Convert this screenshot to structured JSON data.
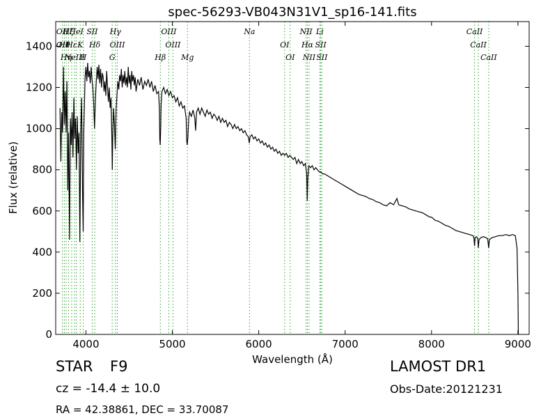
{
  "chart_data": {
    "type": "line",
    "title": "spec-56293-VB043N31V1_sp16-141.fits",
    "xlabel": "Wavelength (Å)",
    "ylabel": "Flux (relative)",
    "xlim": [
      3650,
      9130
    ],
    "ylim": [
      0,
      1520
    ],
    "xticks": [
      {
        "value": 4000,
        "label": "4000"
      },
      {
        "value": 5000,
        "label": "5000"
      },
      {
        "value": 6000,
        "label": "6000"
      },
      {
        "value": 7000,
        "label": "7000"
      },
      {
        "value": 8000,
        "label": "8000"
      },
      {
        "value": 9000,
        "label": "9000"
      }
    ],
    "yticks": [
      {
        "value": 0,
        "label": "0"
      },
      {
        "value": 200,
        "label": "200"
      },
      {
        "value": 400,
        "label": "400"
      },
      {
        "value": 600,
        "label": "600"
      },
      {
        "value": 800,
        "label": "800"
      },
      {
        "value": 1000,
        "label": "1000"
      },
      {
        "value": 1200,
        "label": "1200"
      },
      {
        "value": 1400,
        "label": "1400"
      }
    ],
    "line_color": "#000000",
    "marker_color": "#2ca02c",
    "grid": false,
    "lines": [
      {
        "wl": 3727,
        "labels": [
          "OII",
          "OII"
        ]
      },
      {
        "wl": 3750,
        "labels": [
          "Hθ"
        ]
      },
      {
        "wl": 3771,
        "labels": [
          "Hη"
        ]
      },
      {
        "wl": 3798,
        "labels": [
          "Hζ"
        ]
      },
      {
        "wl": 3835,
        "labels": [
          "Hε"
        ]
      },
      {
        "wl": 3869,
        "labels": [
          "NeIII"
        ]
      },
      {
        "wl": 3889,
        "labels": [
          "HeI"
        ]
      },
      {
        "wl": 3934,
        "labels": [
          "K"
        ]
      },
      {
        "wl": 3969,
        "labels": [
          "H"
        ]
      },
      {
        "wl": 4072,
        "labels": [
          "SII"
        ]
      },
      {
        "wl": 4102,
        "labels": [
          "Hδ"
        ]
      },
      {
        "wl": 4304,
        "labels": [
          "G"
        ]
      },
      {
        "wl": 4341,
        "labels": [
          "Hγ"
        ]
      },
      {
        "wl": 4363,
        "labels": [
          "OIII"
        ]
      },
      {
        "wl": 4861,
        "labels": [
          "Hβ"
        ]
      },
      {
        "wl": 4959,
        "labels": [
          "OIII"
        ]
      },
      {
        "wl": 5007,
        "labels": [
          "OIII"
        ]
      },
      {
        "wl": 5175,
        "labels": [
          "Mg"
        ]
      },
      {
        "wl": 5893,
        "labels": [
          "Na"
        ]
      },
      {
        "wl": 6300,
        "labels": [
          "OI"
        ]
      },
      {
        "wl": 6364,
        "labels": [
          "OI"
        ]
      },
      {
        "wl": 6548,
        "labels": [
          "NII"
        ]
      },
      {
        "wl": 6563,
        "labels": [
          "Hα"
        ]
      },
      {
        "wl": 6583,
        "labels": [
          "NII"
        ]
      },
      {
        "wl": 6707,
        "labels": [
          "Li"
        ]
      },
      {
        "wl": 6717,
        "labels": [
          "SII"
        ]
      },
      {
        "wl": 6731,
        "labels": [
          "SII"
        ]
      },
      {
        "wl": 8498,
        "labels": [
          "CaII"
        ]
      },
      {
        "wl": 8542,
        "labels": [
          "CaII"
        ]
      },
      {
        "wl": 8662,
        "labels": [
          "CaII"
        ]
      }
    ],
    "flux": [
      [
        3700,
        1100
      ],
      [
        3710,
        840
      ],
      [
        3720,
        1080
      ],
      [
        3730,
        980
      ],
      [
        3740,
        1300
      ],
      [
        3750,
        1020
      ],
      [
        3760,
        1180
      ],
      [
        3770,
        980
      ],
      [
        3780,
        1230
      ],
      [
        3790,
        700
      ],
      [
        3800,
        980
      ],
      [
        3810,
        460
      ],
      [
        3820,
        1050
      ],
      [
        3830,
        920
      ],
      [
        3840,
        1080
      ],
      [
        3850,
        860
      ],
      [
        3860,
        1150
      ],
      [
        3870,
        950
      ],
      [
        3880,
        1050
      ],
      [
        3890,
        800
      ],
      [
        3900,
        1060
      ],
      [
        3910,
        880
      ],
      [
        3920,
        980
      ],
      [
        3930,
        450
      ],
      [
        3940,
        1000
      ],
      [
        3950,
        1150
      ],
      [
        3960,
        700
      ],
      [
        3968,
        500
      ],
      [
        3975,
        980
      ],
      [
        3990,
        1250
      ],
      [
        4000,
        1300
      ],
      [
        4010,
        1230
      ],
      [
        4020,
        1320
      ],
      [
        4030,
        1250
      ],
      [
        4040,
        1280
      ],
      [
        4050,
        1220
      ],
      [
        4060,
        1300
      ],
      [
        4070,
        1240
      ],
      [
        4080,
        1200
      ],
      [
        4090,
        1120
      ],
      [
        4100,
        1000
      ],
      [
        4110,
        1150
      ],
      [
        4120,
        1230
      ],
      [
        4130,
        1300
      ],
      [
        4140,
        1240
      ],
      [
        4150,
        1310
      ],
      [
        4160,
        1220
      ],
      [
        4170,
        1290
      ],
      [
        4180,
        1200
      ],
      [
        4190,
        1270
      ],
      [
        4200,
        1250
      ],
      [
        4210,
        1180
      ],
      [
        4220,
        1230
      ],
      [
        4230,
        1160
      ],
      [
        4240,
        1280
      ],
      [
        4250,
        1200
      ],
      [
        4260,
        1130
      ],
      [
        4270,
        1200
      ],
      [
        4280,
        1100
      ],
      [
        4290,
        1150
      ],
      [
        4300,
        950
      ],
      [
        4305,
        800
      ],
      [
        4310,
        950
      ],
      [
        4320,
        1100
      ],
      [
        4330,
        1020
      ],
      [
        4340,
        900
      ],
      [
        4350,
        1100
      ],
      [
        4360,
        1170
      ],
      [
        4370,
        1230
      ],
      [
        4380,
        1190
      ],
      [
        4390,
        1260
      ],
      [
        4400,
        1230
      ],
      [
        4410,
        1290
      ],
      [
        4420,
        1200
      ],
      [
        4430,
        1260
      ],
      [
        4440,
        1220
      ],
      [
        4450,
        1280
      ],
      [
        4460,
        1210
      ],
      [
        4470,
        1250
      ],
      [
        4480,
        1200
      ],
      [
        4490,
        1300
      ],
      [
        4500,
        1220
      ],
      [
        4510,
        1260
      ],
      [
        4520,
        1190
      ],
      [
        4530,
        1280
      ],
      [
        4540,
        1230
      ],
      [
        4550,
        1260
      ],
      [
        4560,
        1210
      ],
      [
        4570,
        1250
      ],
      [
        4580,
        1180
      ],
      [
        4600,
        1240
      ],
      [
        4620,
        1210
      ],
      [
        4640,
        1250
      ],
      [
        4660,
        1190
      ],
      [
        4680,
        1230
      ],
      [
        4700,
        1210
      ],
      [
        4720,
        1240
      ],
      [
        4740,
        1200
      ],
      [
        4760,
        1230
      ],
      [
        4780,
        1180
      ],
      [
        4800,
        1210
      ],
      [
        4820,
        1170
      ],
      [
        4840,
        1180
      ],
      [
        4850,
        1100
      ],
      [
        4855,
        950
      ],
      [
        4860,
        920
      ],
      [
        4865,
        1000
      ],
      [
        4870,
        1120
      ],
      [
        4880,
        1180
      ],
      [
        4900,
        1200
      ],
      [
        4920,
        1170
      ],
      [
        4940,
        1190
      ],
      [
        4960,
        1160
      ],
      [
        4980,
        1180
      ],
      [
        5000,
        1150
      ],
      [
        5020,
        1160
      ],
      [
        5040,
        1130
      ],
      [
        5060,
        1150
      ],
      [
        5080,
        1110
      ],
      [
        5100,
        1130
      ],
      [
        5120,
        1100
      ],
      [
        5140,
        1110
      ],
      [
        5160,
        1050
      ],
      [
        5167,
        940
      ],
      [
        5172,
        920
      ],
      [
        5180,
        960
      ],
      [
        5190,
        1050
      ],
      [
        5200,
        1080
      ],
      [
        5220,
        1060
      ],
      [
        5240,
        1090
      ],
      [
        5260,
        1050
      ],
      [
        5270,
        990
      ],
      [
        5280,
        1080
      ],
      [
        5300,
        1100
      ],
      [
        5320,
        1070
      ],
      [
        5340,
        1100
      ],
      [
        5360,
        1080
      ],
      [
        5380,
        1060
      ],
      [
        5400,
        1090
      ],
      [
        5420,
        1070
      ],
      [
        5440,
        1080
      ],
      [
        5460,
        1050
      ],
      [
        5480,
        1070
      ],
      [
        5500,
        1060
      ],
      [
        5520,
        1040
      ],
      [
        5540,
        1060
      ],
      [
        5560,
        1030
      ],
      [
        5580,
        1050
      ],
      [
        5600,
        1030
      ],
      [
        5620,
        1040
      ],
      [
        5640,
        1010
      ],
      [
        5660,
        1030
      ],
      [
        5680,
        1020
      ],
      [
        5700,
        1000
      ],
      [
        5720,
        1020
      ],
      [
        5740,
        1000
      ],
      [
        5760,
        1010
      ],
      [
        5780,
        990
      ],
      [
        5800,
        1000
      ],
      [
        5820,
        980
      ],
      [
        5840,
        990
      ],
      [
        5860,
        970
      ],
      [
        5880,
        960
      ],
      [
        5890,
        930
      ],
      [
        5900,
        960
      ],
      [
        5920,
        970
      ],
      [
        5940,
        950
      ],
      [
        5960,
        960
      ],
      [
        5980,
        940
      ],
      [
        6000,
        950
      ],
      [
        6020,
        930
      ],
      [
        6040,
        940
      ],
      [
        6060,
        920
      ],
      [
        6080,
        930
      ],
      [
        6100,
        910
      ],
      [
        6120,
        920
      ],
      [
        6140,
        900
      ],
      [
        6160,
        910
      ],
      [
        6180,
        890
      ],
      [
        6200,
        900
      ],
      [
        6220,
        880
      ],
      [
        6240,
        890
      ],
      [
        6260,
        870
      ],
      [
        6280,
        880
      ],
      [
        6300,
        870
      ],
      [
        6320,
        880
      ],
      [
        6340,
        860
      ],
      [
        6360,
        870
      ],
      [
        6380,
        860
      ],
      [
        6400,
        850
      ],
      [
        6420,
        860
      ],
      [
        6440,
        830
      ],
      [
        6460,
        850
      ],
      [
        6480,
        830
      ],
      [
        6500,
        840
      ],
      [
        6520,
        820
      ],
      [
        6540,
        830
      ],
      [
        6555,
        780
      ],
      [
        6562,
        650
      ],
      [
        6568,
        760
      ],
      [
        6580,
        820
      ],
      [
        6600,
        810
      ],
      [
        6620,
        820
      ],
      [
        6640,
        800
      ],
      [
        6660,
        810
      ],
      [
        6680,
        800
      ],
      [
        6700,
        790
      ],
      [
        6720,
        790
      ],
      [
        6740,
        780
      ],
      [
        6760,
        780
      ],
      [
        6800,
        770
      ],
      [
        6840,
        760
      ],
      [
        6880,
        750
      ],
      [
        6920,
        740
      ],
      [
        6960,
        730
      ],
      [
        7000,
        720
      ],
      [
        7040,
        710
      ],
      [
        7080,
        700
      ],
      [
        7120,
        690
      ],
      [
        7160,
        680
      ],
      [
        7200,
        675
      ],
      [
        7240,
        670
      ],
      [
        7280,
        660
      ],
      [
        7320,
        655
      ],
      [
        7360,
        645
      ],
      [
        7400,
        640
      ],
      [
        7440,
        630
      ],
      [
        7480,
        625
      ],
      [
        7520,
        640
      ],
      [
        7560,
        630
      ],
      [
        7600,
        660
      ],
      [
        7620,
        630
      ],
      [
        7660,
        625
      ],
      [
        7700,
        620
      ],
      [
        7740,
        610
      ],
      [
        7780,
        605
      ],
      [
        7820,
        600
      ],
      [
        7860,
        595
      ],
      [
        7900,
        590
      ],
      [
        7940,
        580
      ],
      [
        7980,
        570
      ],
      [
        8000,
        570
      ],
      [
        8040,
        555
      ],
      [
        8080,
        550
      ],
      [
        8120,
        540
      ],
      [
        8160,
        530
      ],
      [
        8200,
        525
      ],
      [
        8240,
        515
      ],
      [
        8280,
        505
      ],
      [
        8320,
        500
      ],
      [
        8360,
        495
      ],
      [
        8400,
        490
      ],
      [
        8440,
        485
      ],
      [
        8480,
        480
      ],
      [
        8490,
        470
      ],
      [
        8498,
        430
      ],
      [
        8505,
        470
      ],
      [
        8520,
        475
      ],
      [
        8535,
        465
      ],
      [
        8542,
        420
      ],
      [
        8550,
        460
      ],
      [
        8570,
        470
      ],
      [
        8600,
        475
      ],
      [
        8630,
        470
      ],
      [
        8650,
        465
      ],
      [
        8662,
        420
      ],
      [
        8670,
        460
      ],
      [
        8700,
        470
      ],
      [
        8740,
        475
      ],
      [
        8780,
        480
      ],
      [
        8820,
        480
      ],
      [
        8860,
        485
      ],
      [
        8900,
        480
      ],
      [
        8940,
        485
      ],
      [
        8970,
        480
      ],
      [
        8990,
        420
      ],
      [
        9000,
        200
      ],
      [
        9005,
        0
      ]
    ]
  },
  "footer": {
    "object_class": "STAR",
    "subclass": "F9",
    "survey": "LAMOST DR1",
    "redshift": "cz = -14.4 ± 10.0",
    "obs_date": "Obs-Date:20121231",
    "coordinates": "RA = 42.38861, DEC = 33.70087"
  }
}
